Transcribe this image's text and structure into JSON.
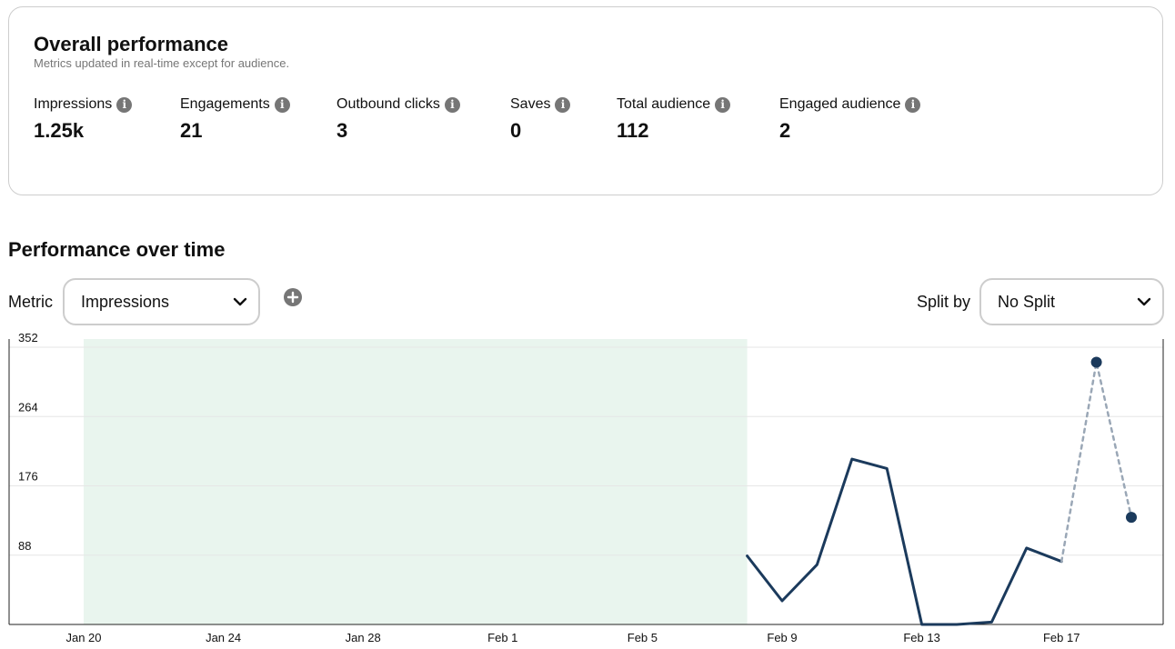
{
  "overall": {
    "title": "Overall performance",
    "subtitle": "Metrics updated in real-time except for audience.",
    "metrics": [
      {
        "label": "Impressions",
        "value": "1.25k"
      },
      {
        "label": "Engagements",
        "value": "21"
      },
      {
        "label": "Outbound clicks",
        "value": "3"
      },
      {
        "label": "Saves",
        "value": "0"
      },
      {
        "label": "Total audience",
        "value": "112"
      },
      {
        "label": "Engaged audience",
        "value": "2"
      }
    ],
    "info_icon": "info-icon"
  },
  "over_time": {
    "title": "Performance over time",
    "metric_label": "Metric",
    "metric_selected": "Impressions",
    "split_label": "Split by",
    "split_selected": "No Split",
    "add_icon": "plus-circle-icon",
    "dropdown_icon": "chevron-down-icon"
  },
  "colors": {
    "line": "#1b3a5c",
    "estimated_line": "#9aa7b6",
    "shaded": "#e9f5ee",
    "grid": "#e6e6e6"
  },
  "chart_data": {
    "type": "line",
    "x": [
      "Jan 20",
      "Jan 21",
      "Jan 22",
      "Jan 23",
      "Jan 24",
      "Jan 25",
      "Jan 26",
      "Jan 27",
      "Jan 28",
      "Jan 29",
      "Jan 30",
      "Jan 31",
      "Feb 1",
      "Feb 2",
      "Feb 3",
      "Feb 4",
      "Feb 5",
      "Feb 6",
      "Feb 7",
      "Feb 8",
      "Feb 9",
      "Feb 10",
      "Feb 11",
      "Feb 12",
      "Feb 13",
      "Feb 14",
      "Feb 15",
      "Feb 16",
      "Feb 17",
      "Feb 18",
      "Feb 19"
    ],
    "series": [
      {
        "values": [
          null,
          null,
          null,
          null,
          null,
          null,
          null,
          null,
          null,
          null,
          null,
          null,
          null,
          null,
          null,
          null,
          null,
          null,
          null,
          87,
          30,
          76,
          210,
          198,
          0,
          0,
          3,
          97,
          80,
          null,
          null
        ]
      },
      {
        "style": "dashed",
        "values": [
          null,
          null,
          null,
          null,
          null,
          null,
          null,
          null,
          null,
          null,
          null,
          null,
          null,
          null,
          null,
          null,
          null,
          null,
          null,
          null,
          null,
          null,
          null,
          null,
          null,
          null,
          null,
          null,
          80,
          333,
          136
        ]
      }
    ],
    "markers": [
      {
        "x": "Feb 18",
        "y": 333
      },
      {
        "x": "Feb 19",
        "y": 136
      }
    ],
    "shaded_range": [
      "Jan 20",
      "Feb 8"
    ],
    "x_ticks": [
      "Jan 20",
      "Jan 24",
      "Jan 28",
      "Feb 1",
      "Feb 5",
      "Feb 9",
      "Feb 13",
      "Feb 17"
    ],
    "y_ticks": [
      88,
      176,
      264,
      352
    ],
    "ylim": [
      0,
      352
    ],
    "grid": true,
    "title": "",
    "xlabel": "",
    "ylabel": ""
  }
}
